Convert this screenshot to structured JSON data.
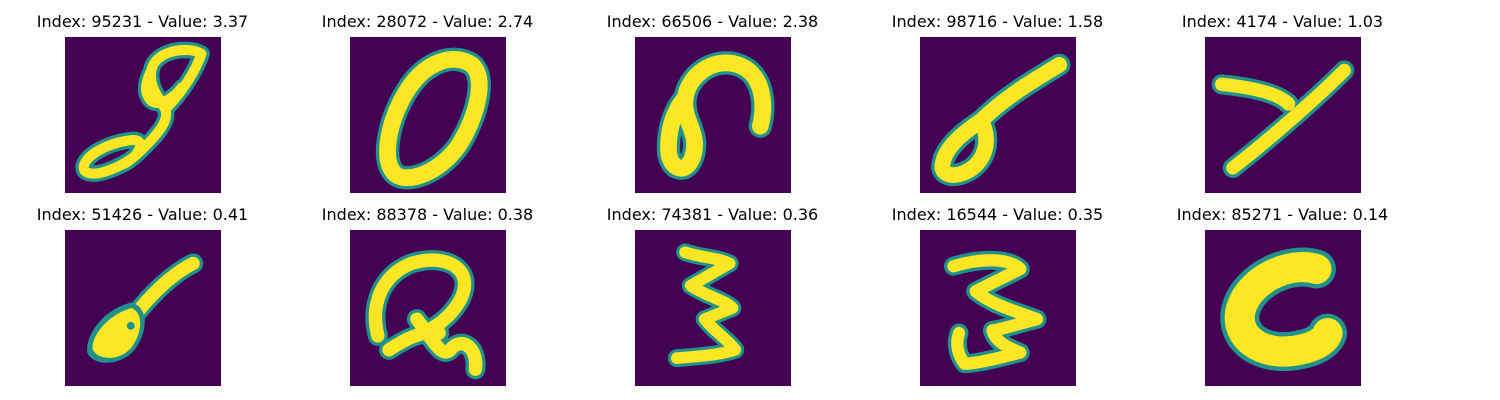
{
  "colors": {
    "background": "#440154",
    "stroke": "#fde725",
    "edge": "#21918c"
  },
  "panels": [
    {
      "title": "Index: 95231 - Value: 3.37",
      "depicts": "digit-8-icon"
    },
    {
      "title": "Index: 28072 - Value: 2.74",
      "depicts": "digit-0-icon"
    },
    {
      "title": "Index: 66506 - Value: 2.38",
      "depicts": "digit-6-icon"
    },
    {
      "title": "Index: 98716 - Value: 1.58",
      "depicts": "digit-6-slanted-icon"
    },
    {
      "title": "Index: 4174 - Value: 1.03",
      "depicts": "digit-4-icon"
    },
    {
      "title": "Index: 51426 - Value: 0.41",
      "depicts": "digit-6-blob-icon"
    },
    {
      "title": "Index: 88378 - Value: 0.38",
      "depicts": "digit-2-icon"
    },
    {
      "title": "Index: 74381 - Value: 0.36",
      "depicts": "digit-3-icon"
    },
    {
      "title": "Index: 16544 - Value: 0.35",
      "depicts": "digit-3-zigzag-icon"
    },
    {
      "title": "Index: 85271 - Value: 0.14",
      "depicts": "letter-c-icon"
    }
  ]
}
